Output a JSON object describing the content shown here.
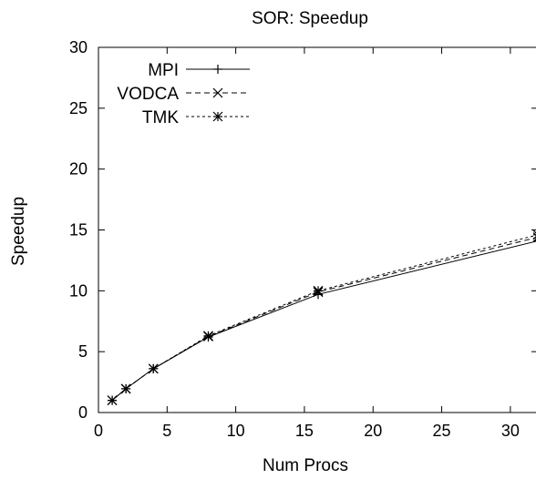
{
  "chart_data": {
    "type": "line",
    "title": "SOR: Speedup",
    "xlabel": "Num Procs",
    "ylabel": "Speedup",
    "xlim": [
      0,
      32
    ],
    "ylim": [
      0,
      30
    ],
    "xticks": [
      0,
      5,
      10,
      15,
      20,
      25,
      30
    ],
    "yticks": [
      0,
      5,
      10,
      15,
      20,
      25,
      30
    ],
    "grid": false,
    "legend_position": "top-left",
    "series": [
      {
        "name": "MPI",
        "marker": "plus",
        "dash": "solid",
        "x": [
          1,
          2,
          4,
          8,
          16,
          32
        ],
        "y": [
          1.0,
          1.95,
          3.6,
          6.2,
          9.7,
          14.1
        ]
      },
      {
        "name": "VODCA",
        "marker": "cross",
        "dash": "dashed",
        "x": [
          1,
          2,
          4,
          8,
          16,
          32
        ],
        "y": [
          1.0,
          1.95,
          3.6,
          6.25,
          9.9,
          14.4
        ]
      },
      {
        "name": "TMK",
        "marker": "star",
        "dash": "dotted",
        "x": [
          1,
          2,
          4,
          8,
          16,
          32
        ],
        "y": [
          1.0,
          1.95,
          3.6,
          6.3,
          10.0,
          14.6
        ]
      }
    ]
  }
}
